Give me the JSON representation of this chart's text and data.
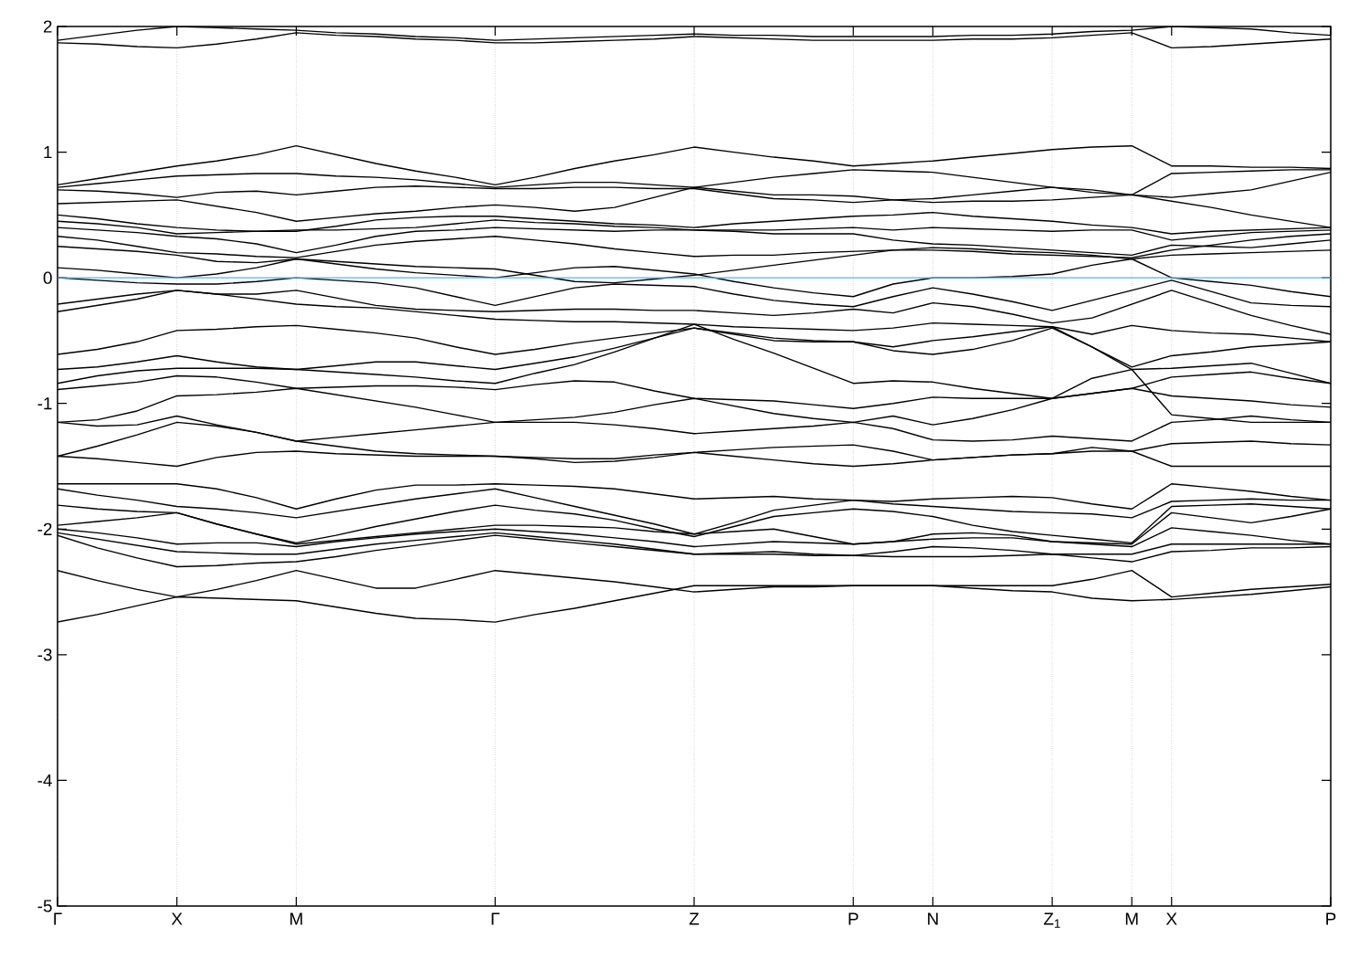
{
  "chart_data": {
    "type": "line",
    "categories": [
      "Γ",
      null,
      null,
      "X",
      null,
      null,
      "M",
      null,
      null,
      null,
      null,
      "Γ",
      null,
      null,
      null,
      null,
      "Z",
      null,
      null,
      null,
      "P",
      null,
      "N",
      null,
      null,
      "Z$_{1}$",
      null,
      "M",
      "X",
      null,
      null,
      null,
      "P"
    ],
    "series": [
      {
        "color": "#000000",
        "values": [
          1.89,
          1.93,
          1.97,
          2.0,
          1.99,
          1.98,
          1.97,
          1.95,
          1.94,
          1.92,
          1.91,
          1.89,
          1.9,
          1.91,
          1.92,
          1.93,
          1.94,
          1.93,
          1.93,
          1.92,
          1.92,
          1.92,
          1.92,
          1.93,
          1.93,
          1.94,
          1.96,
          1.97,
          2.0,
          1.99,
          1.98,
          1.95,
          1.93
        ]
      },
      {
        "color": "#000000",
        "values": [
          1.87,
          1.86,
          1.84,
          1.83,
          1.86,
          1.9,
          1.95,
          1.93,
          1.92,
          1.9,
          1.89,
          1.87,
          1.87,
          1.88,
          1.89,
          1.9,
          1.92,
          1.91,
          1.9,
          1.89,
          1.89,
          1.89,
          1.89,
          1.9,
          1.9,
          1.91,
          1.93,
          1.95,
          1.83,
          1.84,
          1.86,
          1.88,
          1.9
        ]
      },
      {
        "color": "#000000",
        "values": [
          0.74,
          0.79,
          0.84,
          0.89,
          0.93,
          0.98,
          1.05,
          0.98,
          0.91,
          0.85,
          0.8,
          0.74,
          0.8,
          0.87,
          0.93,
          0.98,
          1.04,
          1.0,
          0.96,
          0.93,
          0.89,
          0.91,
          0.93,
          0.96,
          0.99,
          1.02,
          1.04,
          1.05,
          0.89,
          0.89,
          0.88,
          0.88,
          0.87
        ]
      },
      {
        "color": "#000000",
        "values": [
          0.72,
          0.75,
          0.78,
          0.81,
          0.82,
          0.83,
          0.83,
          0.81,
          0.8,
          0.78,
          0.75,
          0.72,
          0.74,
          0.76,
          0.76,
          0.74,
          0.72,
          0.76,
          0.8,
          0.83,
          0.86,
          0.85,
          0.84,
          0.8,
          0.76,
          0.72,
          0.68,
          0.66,
          0.83,
          0.84,
          0.85,
          0.86,
          0.86
        ]
      },
      {
        "color": "#000000",
        "values": [
          0.7,
          0.69,
          0.67,
          0.64,
          0.68,
          0.69,
          0.66,
          0.69,
          0.72,
          0.73,
          0.72,
          0.71,
          0.71,
          0.72,
          0.72,
          0.71,
          0.71,
          0.67,
          0.63,
          0.62,
          0.6,
          0.62,
          0.63,
          0.66,
          0.69,
          0.72,
          0.7,
          0.66,
          0.64,
          0.67,
          0.7,
          0.77,
          0.84
        ]
      },
      {
        "color": "#000000",
        "values": [
          0.59,
          0.6,
          0.61,
          0.62,
          0.57,
          0.52,
          0.45,
          0.48,
          0.51,
          0.53,
          0.56,
          0.58,
          0.56,
          0.53,
          0.56,
          0.64,
          0.72,
          0.69,
          0.66,
          0.66,
          0.65,
          0.62,
          0.6,
          0.61,
          0.61,
          0.62,
          0.64,
          0.66,
          0.61,
          0.56,
          0.5,
          0.45,
          0.4
        ]
      },
      {
        "color": "#000000",
        "values": [
          0.5,
          0.47,
          0.43,
          0.4,
          0.38,
          0.37,
          0.37,
          0.41,
          0.46,
          0.48,
          0.49,
          0.49,
          0.47,
          0.45,
          0.43,
          0.42,
          0.4,
          0.43,
          0.45,
          0.47,
          0.49,
          0.5,
          0.52,
          0.49,
          0.47,
          0.45,
          0.42,
          0.4,
          0.35,
          0.37,
          0.38,
          0.39,
          0.4
        ]
      },
      {
        "color": "#000000",
        "values": [
          0.45,
          0.43,
          0.4,
          0.35,
          0.36,
          0.37,
          0.38,
          0.38,
          0.39,
          0.4,
          0.43,
          0.46,
          0.44,
          0.43,
          0.41,
          0.4,
          0.38,
          0.38,
          0.38,
          0.39,
          0.4,
          0.38,
          0.4,
          0.39,
          0.38,
          0.37,
          0.38,
          0.38,
          0.3,
          0.33,
          0.36,
          0.37,
          0.38
        ]
      },
      {
        "color": "#000000",
        "values": [
          0.4,
          0.38,
          0.36,
          0.33,
          0.31,
          0.27,
          0.2,
          0.26,
          0.33,
          0.37,
          0.38,
          0.4,
          0.39,
          0.38,
          0.37,
          0.38,
          0.38,
          0.37,
          0.35,
          0.35,
          0.35,
          0.3,
          0.27,
          0.26,
          0.24,
          0.22,
          0.2,
          0.18,
          0.26,
          0.25,
          0.24,
          0.27,
          0.3
        ]
      },
      {
        "color": "#000000",
        "values": [
          0.33,
          0.3,
          0.25,
          0.2,
          0.19,
          0.17,
          0.16,
          0.21,
          0.26,
          0.29,
          0.31,
          0.33,
          0.3,
          0.27,
          0.23,
          0.2,
          0.17,
          0.18,
          0.18,
          0.2,
          0.21,
          0.22,
          0.22,
          0.21,
          0.19,
          0.18,
          0.17,
          0.16,
          0.22,
          0.26,
          0.3,
          0.33,
          0.35
        ]
      },
      {
        "color": "#000000",
        "values": [
          0.25,
          0.23,
          0.21,
          0.18,
          0.13,
          0.12,
          0.15,
          0.13,
          0.11,
          0.09,
          0.08,
          0.07,
          0.02,
          -0.03,
          -0.04,
          -0.01,
          0.02,
          0.06,
          0.1,
          0.14,
          0.18,
          0.22,
          0.24,
          0.23,
          0.21,
          0.2,
          0.18,
          0.15,
          0.18,
          0.19,
          0.2,
          0.21,
          0.22
        ]
      },
      {
        "color": "#000000",
        "values": [
          0.08,
          0.06,
          0.03,
          0.0,
          0.03,
          0.08,
          0.15,
          0.11,
          0.07,
          0.04,
          0.02,
          0.0,
          0.04,
          0.08,
          0.09,
          0.06,
          0.03,
          -0.03,
          -0.08,
          -0.12,
          -0.15,
          -0.05,
          0.0,
          0.0,
          0.01,
          0.03,
          0.1,
          0.15,
          0.0,
          -0.03,
          -0.06,
          -0.11,
          -0.15
        ]
      },
      {
        "color": "#000000",
        "values": [
          0.0,
          -0.02,
          -0.04,
          -0.05,
          -0.05,
          -0.03,
          0.0,
          -0.02,
          -0.04,
          -0.08,
          -0.15,
          -0.22,
          -0.15,
          -0.08,
          -0.05,
          -0.06,
          -0.07,
          -0.13,
          -0.18,
          -0.21,
          -0.23,
          -0.15,
          -0.08,
          -0.13,
          -0.19,
          -0.26,
          -0.18,
          -0.1,
          -0.02,
          -0.11,
          -0.2,
          -0.22,
          -0.23
        ]
      },
      {
        "color": "#000000",
        "values": [
          -0.21,
          -0.17,
          -0.13,
          -0.1,
          -0.13,
          -0.13,
          -0.1,
          -0.16,
          -0.22,
          -0.25,
          -0.26,
          -0.27,
          -0.26,
          -0.25,
          -0.25,
          -0.26,
          -0.26,
          -0.28,
          -0.3,
          -0.28,
          -0.25,
          -0.28,
          -0.2,
          -0.23,
          -0.29,
          -0.36,
          -0.32,
          -0.21,
          -0.1,
          -0.2,
          -0.3,
          -0.38,
          -0.45
        ]
      },
      {
        "color": "#000000",
        "values": [
          -0.27,
          -0.22,
          -0.17,
          -0.1,
          -0.13,
          -0.17,
          -0.21,
          -0.23,
          -0.24,
          -0.27,
          -0.3,
          -0.33,
          -0.34,
          -0.35,
          -0.35,
          -0.36,
          -0.37,
          -0.39,
          -0.4,
          -0.41,
          -0.42,
          -0.4,
          -0.36,
          -0.37,
          -0.38,
          -0.39,
          -0.45,
          -0.38,
          -0.42,
          -0.44,
          -0.45,
          -0.48,
          -0.51
        ]
      },
      {
        "color": "#000000",
        "values": [
          -0.61,
          -0.57,
          -0.51,
          -0.42,
          -0.41,
          -0.39,
          -0.38,
          -0.41,
          -0.44,
          -0.48,
          -0.55,
          -0.61,
          -0.57,
          -0.52,
          -0.48,
          -0.44,
          -0.4,
          -0.44,
          -0.48,
          -0.5,
          -0.51,
          -0.55,
          -0.5,
          -0.47,
          -0.43,
          -0.39,
          -0.55,
          -0.71,
          -0.62,
          -0.59,
          -0.55,
          -0.53,
          -0.51
        ]
      },
      {
        "color": "#000000",
        "values": [
          -0.73,
          -0.71,
          -0.67,
          -0.62,
          -0.67,
          -0.71,
          -0.73,
          -0.7,
          -0.67,
          -0.67,
          -0.7,
          -0.73,
          -0.68,
          -0.63,
          -0.56,
          -0.48,
          -0.4,
          -0.45,
          -0.5,
          -0.51,
          -0.51,
          -0.58,
          -0.61,
          -0.57,
          -0.5,
          -0.4,
          -0.55,
          -0.73,
          -0.72,
          -0.7,
          -0.68,
          -0.76,
          -0.84
        ]
      },
      {
        "color": "#000000",
        "values": [
          -0.84,
          -0.78,
          -0.74,
          -0.72,
          -0.72,
          -0.72,
          -0.73,
          -0.75,
          -0.77,
          -0.79,
          -0.82,
          -0.84,
          -0.76,
          -0.69,
          -0.59,
          -0.48,
          -0.37,
          -0.49,
          -0.6,
          -0.72,
          -0.84,
          -0.82,
          -0.83,
          -0.88,
          -0.92,
          -0.96,
          -0.92,
          -0.88,
          -0.79,
          -0.77,
          -0.75,
          -0.8,
          -0.84
        ]
      },
      {
        "color": "#000000",
        "values": [
          -0.89,
          -0.86,
          -0.83,
          -0.78,
          -0.79,
          -0.83,
          -0.88,
          -0.87,
          -0.86,
          -0.86,
          -0.87,
          -0.89,
          -0.85,
          -0.82,
          -0.83,
          -0.9,
          -0.96,
          -0.97,
          -0.98,
          -1.01,
          -1.04,
          -1.0,
          -0.95,
          -0.96,
          -0.96,
          -0.96,
          -0.92,
          -0.88,
          -0.94,
          -0.96,
          -0.98,
          -1.01,
          -1.03
        ]
      },
      {
        "color": "#000000",
        "values": [
          -1.15,
          -1.13,
          -1.06,
          -0.94,
          -0.93,
          -0.91,
          -0.88,
          -0.93,
          -0.98,
          -1.03,
          -1.09,
          -1.15,
          -1.13,
          -1.11,
          -1.07,
          -1.01,
          -0.96,
          -1.02,
          -1.08,
          -1.12,
          -1.15,
          -1.1,
          -1.17,
          -1.12,
          -1.05,
          -0.96,
          -0.8,
          -0.73,
          -1.09,
          -1.12,
          -1.15,
          -1.15,
          -1.15
        ]
      },
      {
        "color": "#000000",
        "values": [
          -1.15,
          -1.18,
          -1.17,
          -1.1,
          -1.17,
          -1.23,
          -1.3,
          -1.27,
          -1.24,
          -1.21,
          -1.18,
          -1.15,
          -1.15,
          -1.15,
          -1.17,
          -1.2,
          -1.24,
          -1.22,
          -1.2,
          -1.18,
          -1.15,
          -1.2,
          -1.29,
          -1.3,
          -1.29,
          -1.26,
          -1.28,
          -1.3,
          -1.15,
          -1.13,
          -1.1,
          -1.13,
          -1.15
        ]
      },
      {
        "color": "#000000",
        "values": [
          -1.42,
          -1.34,
          -1.25,
          -1.15,
          -1.18,
          -1.23,
          -1.3,
          -1.34,
          -1.38,
          -1.4,
          -1.41,
          -1.42,
          -1.44,
          -1.47,
          -1.46,
          -1.43,
          -1.39,
          -1.37,
          -1.35,
          -1.34,
          -1.33,
          -1.38,
          -1.45,
          -1.43,
          -1.41,
          -1.4,
          -1.35,
          -1.38,
          -1.32,
          -1.31,
          -1.3,
          -1.32,
          -1.33
        ]
      },
      {
        "color": "#000000",
        "values": [
          -1.42,
          -1.44,
          -1.47,
          -1.5,
          -1.43,
          -1.39,
          -1.38,
          -1.4,
          -1.41,
          -1.42,
          -1.42,
          -1.42,
          -1.43,
          -1.44,
          -1.44,
          -1.41,
          -1.39,
          -1.42,
          -1.45,
          -1.48,
          -1.5,
          -1.48,
          -1.45,
          -1.43,
          -1.41,
          -1.4,
          -1.38,
          -1.38,
          -1.5,
          -1.5,
          -1.5,
          -1.5,
          -1.5
        ]
      },
      {
        "color": "#000000",
        "values": [
          -1.64,
          -1.64,
          -1.64,
          -1.64,
          -1.68,
          -1.75,
          -1.84,
          -1.76,
          -1.69,
          -1.65,
          -1.65,
          -1.64,
          -1.65,
          -1.66,
          -1.68,
          -1.72,
          -1.76,
          -1.75,
          -1.74,
          -1.76,
          -1.77,
          -1.78,
          -1.76,
          -1.75,
          -1.74,
          -1.75,
          -1.8,
          -1.84,
          -1.64,
          -1.67,
          -1.7,
          -1.74,
          -1.77
        ]
      },
      {
        "color": "#000000",
        "values": [
          -1.68,
          -1.73,
          -1.77,
          -1.82,
          -1.84,
          -1.87,
          -1.91,
          -1.86,
          -1.81,
          -1.76,
          -1.72,
          -1.68,
          -1.75,
          -1.82,
          -1.89,
          -1.96,
          -2.04,
          -1.95,
          -1.85,
          -1.81,
          -1.77,
          -1.8,
          -1.82,
          -1.84,
          -1.86,
          -1.87,
          -1.88,
          -1.91,
          -1.78,
          -1.77,
          -1.76,
          -1.77,
          -1.77
        ]
      },
      {
        "color": "#000000",
        "values": [
          -1.81,
          -1.84,
          -1.86,
          -1.87,
          -1.96,
          -2.04,
          -2.11,
          -2.05,
          -1.98,
          -1.92,
          -1.86,
          -1.81,
          -1.85,
          -1.88,
          -1.93,
          -2.0,
          -2.06,
          -1.98,
          -1.9,
          -1.87,
          -1.84,
          -1.86,
          -1.9,
          -1.97,
          -2.02,
          -2.05,
          -2.08,
          -2.11,
          -1.82,
          -1.81,
          -1.8,
          -1.82,
          -1.84
        ]
      },
      {
        "color": "#000000",
        "values": [
          -1.97,
          -1.94,
          -1.91,
          -1.87,
          -1.96,
          -2.04,
          -2.12,
          -2.09,
          -2.06,
          -2.03,
          -2.0,
          -1.97,
          -1.97,
          -1.98,
          -1.99,
          -2.02,
          -2.04,
          -2.02,
          -2.0,
          -2.06,
          -2.12,
          -2.1,
          -2.04,
          -2.03,
          -2.05,
          -2.1,
          -2.11,
          -2.12,
          -1.87,
          -1.91,
          -1.95,
          -1.9,
          -1.84
        ]
      },
      {
        "color": "#000000",
        "values": [
          -2.0,
          -2.03,
          -2.07,
          -2.12,
          -2.11,
          -2.11,
          -2.14,
          -2.1,
          -2.07,
          -2.04,
          -2.02,
          -2.0,
          -2.02,
          -2.04,
          -2.07,
          -2.1,
          -2.14,
          -2.12,
          -2.1,
          -2.11,
          -2.12,
          -2.1,
          -2.08,
          -2.07,
          -2.07,
          -2.1,
          -2.12,
          -2.14,
          -1.99,
          -2.02,
          -2.05,
          -2.09,
          -2.12
        ]
      },
      {
        "color": "#000000",
        "values": [
          -2.03,
          -2.08,
          -2.13,
          -2.18,
          -2.19,
          -2.2,
          -2.2,
          -2.16,
          -2.12,
          -2.09,
          -2.06,
          -2.03,
          -2.06,
          -2.09,
          -2.12,
          -2.16,
          -2.2,
          -2.19,
          -2.18,
          -2.2,
          -2.21,
          -2.18,
          -2.14,
          -2.15,
          -2.17,
          -2.2,
          -2.2,
          -2.2,
          -2.12,
          -2.12,
          -2.12,
          -2.12,
          -2.12
        ]
      },
      {
        "color": "#000000",
        "values": [
          -2.05,
          -2.15,
          -2.23,
          -2.3,
          -2.29,
          -2.27,
          -2.26,
          -2.22,
          -2.17,
          -2.13,
          -2.09,
          -2.05,
          -2.08,
          -2.11,
          -2.14,
          -2.17,
          -2.2,
          -2.2,
          -2.2,
          -2.21,
          -2.21,
          -2.22,
          -2.22,
          -2.22,
          -2.21,
          -2.2,
          -2.23,
          -2.26,
          -2.18,
          -2.17,
          -2.15,
          -2.15,
          -2.14
        ]
      },
      {
        "color": "#000000",
        "values": [
          -2.33,
          -2.41,
          -2.48,
          -2.54,
          -2.48,
          -2.41,
          -2.33,
          -2.4,
          -2.47,
          -2.47,
          -2.4,
          -2.33,
          -2.36,
          -2.39,
          -2.42,
          -2.46,
          -2.5,
          -2.48,
          -2.46,
          -2.46,
          -2.45,
          -2.45,
          -2.45,
          -2.45,
          -2.45,
          -2.45,
          -2.4,
          -2.33,
          -2.54,
          -2.51,
          -2.48,
          -2.46,
          -2.44
        ]
      },
      {
        "color": "#000000",
        "values": [
          -2.74,
          -2.68,
          -2.61,
          -2.54,
          -2.55,
          -2.56,
          -2.57,
          -2.62,
          -2.67,
          -2.71,
          -2.72,
          -2.74,
          -2.68,
          -2.63,
          -2.57,
          -2.51,
          -2.45,
          -2.45,
          -2.45,
          -2.45,
          -2.45,
          -2.45,
          -2.45,
          -2.47,
          -2.49,
          -2.5,
          -2.55,
          -2.57,
          -2.56,
          -2.54,
          -2.52,
          -2.49,
          -2.46
        ]
      }
    ],
    "ylim": [
      -5,
      2
    ],
    "yticks": [
      2,
      1,
      0,
      -1,
      -2,
      -3,
      -4,
      -5
    ],
    "grid": "x",
    "ref_lines": [
      {
        "axis": "y",
        "value": 0,
        "color": "#56b4e9"
      }
    ]
  }
}
